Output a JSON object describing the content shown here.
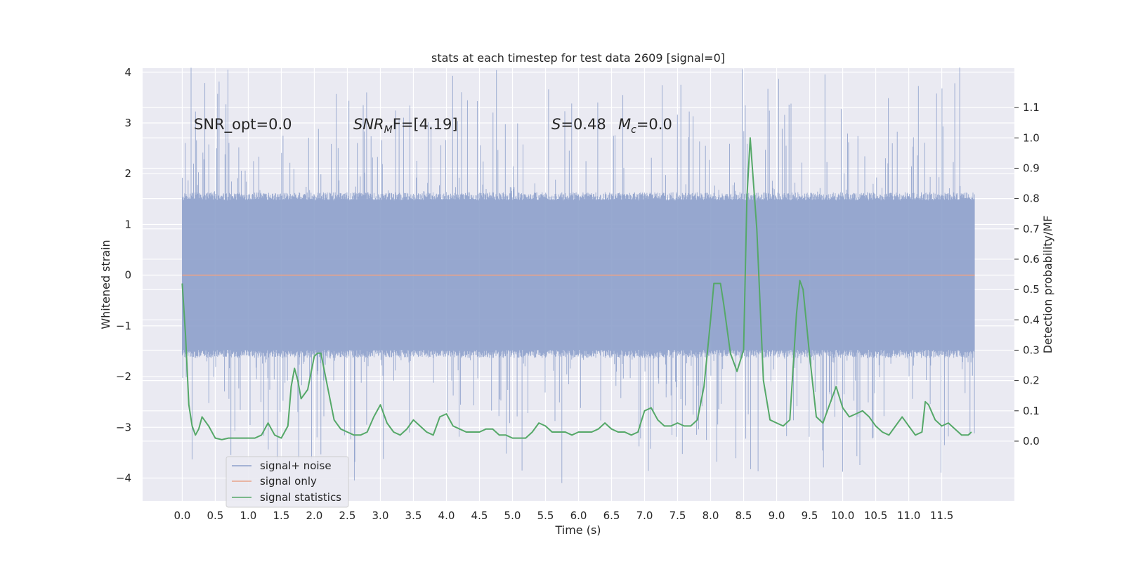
{
  "chart_data": {
    "type": "line",
    "title": "stats at each timestep for test data 2609 [signal=0]",
    "xlabel": "Time (s)",
    "ylabel": "Whitened strain",
    "ylabel_right": "Detection probability/MF",
    "xlim": [
      -0.6,
      12.6
    ],
    "ylim": [
      -4.45,
      4.08
    ],
    "ylim_right": [
      -0.197,
      1.23
    ],
    "x_ticks": [
      "0.0",
      "0.5",
      "1.0",
      "1.5",
      "2.0",
      "2.5",
      "3.0",
      "3.5",
      "4.0",
      "4.5",
      "5.0",
      "5.5",
      "6.0",
      "6.5",
      "7.0",
      "7.5",
      "8.0",
      "8.5",
      "9.0",
      "9.5",
      "10.0",
      "10.5",
      "11.0",
      "11.5"
    ],
    "y_ticks": [
      "4",
      "3",
      "2",
      "1",
      "0",
      "−1",
      "−2",
      "−3",
      "−4"
    ],
    "y_ticks_right": [
      "1.1",
      "1.0",
      "0.9",
      "0.8",
      "0.7",
      "0.6",
      "0.5",
      "0.4",
      "0.3",
      "0.2",
      "0.1",
      "0.0"
    ],
    "grid": true,
    "legend_position": "lower-left",
    "annotations": {
      "snr_opt": "SNR_opt=0.0",
      "snr_mf_base": "SNR",
      "snr_mf_sub": "M",
      "snr_mf_rest": "F=[4.19]",
      "s_label": "S",
      "s_rest": "=0.48",
      "mc_label": "M",
      "mc_sub": "c",
      "mc_rest": "=0.0"
    },
    "series": [
      {
        "name": "signal+ noise",
        "color": "#8da0cb",
        "x_range": [
          0.0,
          12.0
        ],
        "typical_amplitude": 1.6,
        "peak_amplitude": 4.1
      },
      {
        "name": "signal only",
        "color": "#e8a38a",
        "x": [
          0.0,
          12.0
        ],
        "y": [
          0.0,
          0.0
        ]
      },
      {
        "name": "signal statistics",
        "color": "#55a868",
        "axis": "right",
        "x": [
          0.0,
          0.05,
          0.1,
          0.15,
          0.2,
          0.25,
          0.3,
          0.4,
          0.5,
          0.6,
          0.7,
          0.8,
          0.9,
          1.0,
          1.1,
          1.2,
          1.3,
          1.4,
          1.5,
          1.6,
          1.65,
          1.7,
          1.75,
          1.8,
          1.9,
          2.0,
          2.05,
          2.1,
          2.2,
          2.3,
          2.4,
          2.5,
          2.6,
          2.7,
          2.8,
          2.9,
          3.0,
          3.1,
          3.2,
          3.3,
          3.4,
          3.5,
          3.6,
          3.7,
          3.8,
          3.9,
          4.0,
          4.1,
          4.2,
          4.3,
          4.4,
          4.5,
          4.6,
          4.7,
          4.8,
          4.9,
          5.0,
          5.1,
          5.2,
          5.3,
          5.4,
          5.5,
          5.6,
          5.7,
          5.8,
          5.9,
          6.0,
          6.1,
          6.2,
          6.3,
          6.4,
          6.5,
          6.6,
          6.7,
          6.8,
          6.9,
          7.0,
          7.1,
          7.2,
          7.3,
          7.4,
          7.5,
          7.6,
          7.7,
          7.8,
          7.9,
          8.0,
          8.05,
          8.1,
          8.15,
          8.2,
          8.3,
          8.4,
          8.5,
          8.55,
          8.6,
          8.7,
          8.8,
          8.9,
          9.0,
          9.1,
          9.2,
          9.3,
          9.35,
          9.4,
          9.5,
          9.6,
          9.7,
          9.8,
          9.9,
          10.0,
          10.1,
          10.2,
          10.3,
          10.4,
          10.5,
          10.6,
          10.7,
          10.8,
          10.9,
          11.0,
          11.1,
          11.2,
          11.25,
          11.3,
          11.4,
          11.5,
          11.6,
          11.7,
          11.8,
          11.9,
          11.95
        ],
        "y": [
          0.52,
          0.35,
          0.12,
          0.05,
          0.02,
          0.04,
          0.08,
          0.05,
          0.01,
          0.005,
          0.01,
          0.01,
          0.01,
          0.01,
          0.01,
          0.02,
          0.06,
          0.02,
          0.01,
          0.05,
          0.18,
          0.24,
          0.2,
          0.14,
          0.17,
          0.28,
          0.29,
          0.29,
          0.18,
          0.07,
          0.04,
          0.03,
          0.02,
          0.02,
          0.03,
          0.08,
          0.12,
          0.06,
          0.03,
          0.02,
          0.04,
          0.07,
          0.05,
          0.03,
          0.02,
          0.08,
          0.09,
          0.05,
          0.04,
          0.03,
          0.03,
          0.03,
          0.04,
          0.04,
          0.02,
          0.02,
          0.01,
          0.01,
          0.01,
          0.03,
          0.06,
          0.05,
          0.03,
          0.03,
          0.03,
          0.02,
          0.03,
          0.03,
          0.03,
          0.04,
          0.06,
          0.04,
          0.03,
          0.03,
          0.02,
          0.03,
          0.1,
          0.11,
          0.07,
          0.05,
          0.05,
          0.06,
          0.05,
          0.05,
          0.07,
          0.18,
          0.4,
          0.52,
          0.52,
          0.52,
          0.45,
          0.29,
          0.23,
          0.3,
          0.8,
          1.0,
          0.7,
          0.2,
          0.07,
          0.06,
          0.05,
          0.07,
          0.42,
          0.53,
          0.5,
          0.28,
          0.08,
          0.06,
          0.12,
          0.18,
          0.11,
          0.08,
          0.09,
          0.1,
          0.08,
          0.05,
          0.03,
          0.02,
          0.05,
          0.08,
          0.05,
          0.02,
          0.03,
          0.13,
          0.12,
          0.07,
          0.05,
          0.06,
          0.04,
          0.02,
          0.02,
          0.03
        ]
      }
    ]
  }
}
